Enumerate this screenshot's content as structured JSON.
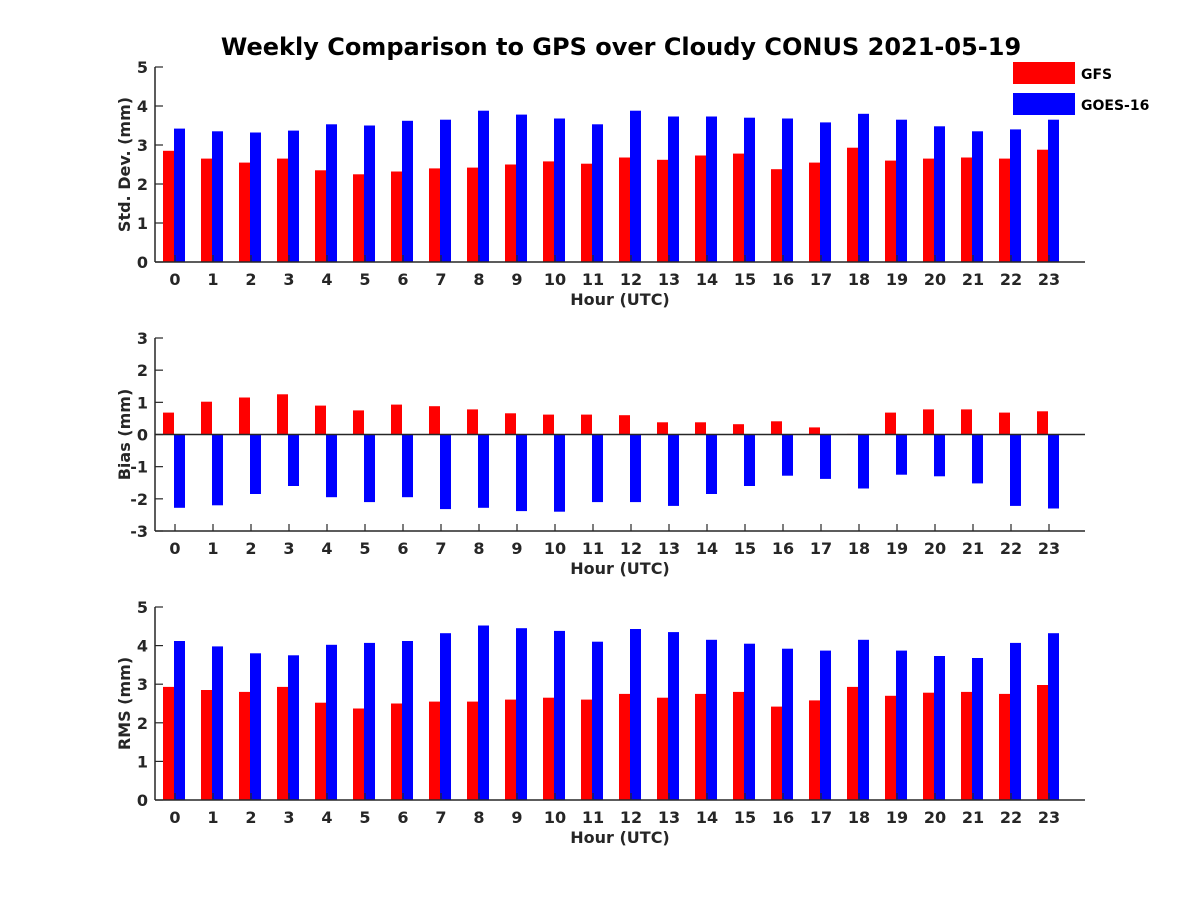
{
  "figure_title": "Weekly Comparison to GPS over Cloudy CONUS 2021-05-19",
  "legend": [
    {
      "name": "GFS",
      "color": "#ff0000"
    },
    {
      "name": "GOES-16",
      "color": "#0000ff"
    }
  ],
  "chart_data": [
    {
      "type": "bar",
      "xlabel": "Hour (UTC)",
      "ylabel": "Std. Dev. (mm)",
      "ylim": [
        0,
        5
      ],
      "yticks": [
        "0",
        "1",
        "2",
        "3",
        "4",
        "5"
      ],
      "categories": [
        "0",
        "1",
        "2",
        "3",
        "4",
        "5",
        "6",
        "7",
        "8",
        "9",
        "10",
        "11",
        "12",
        "13",
        "14",
        "15",
        "16",
        "17",
        "18",
        "19",
        "20",
        "21",
        "22",
        "23"
      ],
      "series": [
        {
          "name": "GFS",
          "values": [
            2.85,
            2.65,
            2.55,
            2.65,
            2.35,
            2.25,
            2.32,
            2.4,
            2.42,
            2.5,
            2.58,
            2.52,
            2.68,
            2.62,
            2.73,
            2.78,
            2.38,
            2.55,
            2.93,
            2.6,
            2.65,
            2.68,
            2.65,
            2.88
          ]
        },
        {
          "name": "GOES-16",
          "values": [
            3.42,
            3.35,
            3.32,
            3.37,
            3.53,
            3.5,
            3.62,
            3.65,
            3.88,
            3.78,
            3.68,
            3.53,
            3.88,
            3.73,
            3.73,
            3.7,
            3.68,
            3.58,
            3.8,
            3.65,
            3.48,
            3.35,
            3.4,
            3.65
          ]
        }
      ]
    },
    {
      "type": "bar",
      "xlabel": "Hour (UTC)",
      "ylabel": "Bias (mm)",
      "ylim": [
        -3,
        3
      ],
      "yticks": [
        "-3",
        "-2",
        "-1",
        "0",
        "1",
        "2",
        "3"
      ],
      "categories": [
        "0",
        "1",
        "2",
        "3",
        "4",
        "5",
        "6",
        "7",
        "8",
        "9",
        "10",
        "11",
        "12",
        "13",
        "14",
        "15",
        "16",
        "17",
        "18",
        "19",
        "20",
        "21",
        "22",
        "23"
      ],
      "series": [
        {
          "name": "GFS",
          "values": [
            0.68,
            1.02,
            1.15,
            1.25,
            0.9,
            0.75,
            0.93,
            0.88,
            0.78,
            0.66,
            0.62,
            0.62,
            0.6,
            0.38,
            0.38,
            0.32,
            0.41,
            0.22,
            0.02,
            0.68,
            0.78,
            0.78,
            0.68,
            0.72
          ]
        },
        {
          "name": "GOES-16",
          "values": [
            -2.28,
            -2.2,
            -1.85,
            -1.6,
            -1.95,
            -2.1,
            -1.95,
            -2.32,
            -2.28,
            -2.38,
            -2.4,
            -2.1,
            -2.1,
            -2.22,
            -1.85,
            -1.6,
            -1.28,
            -1.38,
            -1.68,
            -1.25,
            -1.3,
            -1.52,
            -2.22,
            -2.3
          ]
        }
      ]
    },
    {
      "type": "bar",
      "xlabel": "Hour (UTC)",
      "ylabel": "RMS (mm)",
      "ylim": [
        0,
        5
      ],
      "yticks": [
        "0",
        "1",
        "2",
        "3",
        "4",
        "5"
      ],
      "categories": [
        "0",
        "1",
        "2",
        "3",
        "4",
        "5",
        "6",
        "7",
        "8",
        "9",
        "10",
        "11",
        "12",
        "13",
        "14",
        "15",
        "16",
        "17",
        "18",
        "19",
        "20",
        "21",
        "22",
        "23"
      ],
      "series": [
        {
          "name": "GFS",
          "values": [
            2.93,
            2.85,
            2.8,
            2.93,
            2.52,
            2.37,
            2.5,
            2.55,
            2.55,
            2.6,
            2.65,
            2.6,
            2.75,
            2.65,
            2.75,
            2.8,
            2.42,
            2.58,
            2.93,
            2.7,
            2.78,
            2.8,
            2.75,
            2.98
          ]
        },
        {
          "name": "GOES-16",
          "values": [
            4.12,
            3.98,
            3.8,
            3.75,
            4.02,
            4.07,
            4.12,
            4.32,
            4.52,
            4.45,
            4.38,
            4.1,
            4.43,
            4.35,
            4.15,
            4.05,
            3.92,
            3.87,
            4.15,
            3.87,
            3.73,
            3.68,
            4.07,
            4.32
          ]
        }
      ]
    }
  ]
}
